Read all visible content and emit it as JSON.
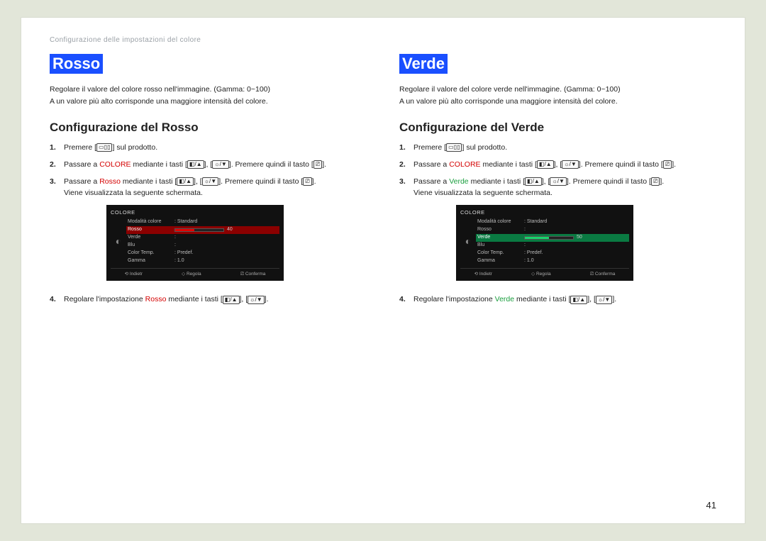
{
  "header": "Configurazione delle impostazioni del colore",
  "page_number": "41",
  "colors": {
    "highlight_bg": "#1a4fff",
    "highlight_fg": "#ffffff",
    "colore_word": "#d40000",
    "rosso_word": "#d40000",
    "verde_word": "#1a9e3e",
    "osd_bg": "#111111",
    "osd_red": "#e30000",
    "osd_green": "#17d66b"
  },
  "icons": {
    "menu": "▭▯▯",
    "up": "◧/▲",
    "down": "☼/▼",
    "enter": "⎚"
  },
  "left": {
    "title": "Rosso",
    "intro_l1": "Regolare il valore del colore rosso nell'immagine. (Gamma: 0~100)",
    "intro_l2": "A un valore più alto corrisponde una maggiore intensità del colore.",
    "subhead": "Configurazione del Rosso",
    "steps": {
      "s1a": "Premere [",
      "s1b": "] sul prodotto.",
      "s2a": "Passare a ",
      "s2_colore": "COLORE",
      "s2b": " mediante i tasti [",
      "s2c": "], [",
      "s2d": "]. Premere quindi il tasto [",
      "s2e": "].",
      "s3a": "Passare a ",
      "s3_rosso": "Rosso",
      "s3b": " mediante i tasti [",
      "s3c": "], [",
      "s3d": "]. Premere quindi il tasto [",
      "s3e": "].",
      "s3_after": "Viene visualizzata la seguente schermata.",
      "s4a": "Regolare l'impostazione ",
      "s4_rosso": "Rosso",
      "s4b": " mediante i tasti [",
      "s4c": "], [",
      "s4d": "]."
    },
    "osd": {
      "title": "COLORE",
      "rows": [
        {
          "label": "Modalità colore",
          "value": "Standard"
        },
        {
          "label": "Rosso",
          "slider": true,
          "fill_pct": 40,
          "num": "40",
          "color": "red",
          "selected": true
        },
        {
          "label": "Verde",
          "value": ""
        },
        {
          "label": "Blu",
          "value": ""
        },
        {
          "label": "Color Temp.",
          "value": "Predef."
        },
        {
          "label": "Gamma",
          "value": "1.0"
        }
      ],
      "foot": [
        "⟲ Indietr",
        "◇ Regola",
        "⎚ Conferma"
      ]
    }
  },
  "right": {
    "title": "Verde",
    "intro_l1": "Regolare il valore del colore verde nell'immagine. (Gamma: 0~100)",
    "intro_l2": "A un valore più alto corrisponde una maggiore intensità del colore.",
    "subhead": "Configurazione del Verde",
    "steps": {
      "s1a": "Premere [",
      "s1b": "] sul prodotto.",
      "s2a": "Passare a ",
      "s2_colore": "COLORE",
      "s2b": " mediante i tasti [",
      "s2c": "], [",
      "s2d": "]. Premere quindi il tasto [",
      "s2e": "].",
      "s3a": "Passare a ",
      "s3_verde": "Verde",
      "s3b": " mediante i tasti [",
      "s3c": "], [",
      "s3d": "]. Premere quindi il tasto [",
      "s3e": "].",
      "s3_after": "Viene visualizzata la seguente schermata.",
      "s4a": "Regolare l'impostazione ",
      "s4_verde": "Verde",
      "s4b": " mediante i tasti [",
      "s4c": "], [",
      "s4d": "]."
    },
    "osd": {
      "title": "COLORE",
      "rows": [
        {
          "label": "Modalità colore",
          "value": "Standard"
        },
        {
          "label": "Rosso",
          "value": ""
        },
        {
          "label": "Verde",
          "slider": true,
          "fill_pct": 50,
          "num": "50",
          "color": "green",
          "selected": true
        },
        {
          "label": "Blu",
          "value": ""
        },
        {
          "label": "Color Temp.",
          "value": "Predef."
        },
        {
          "label": "Gamma",
          "value": "1.0"
        }
      ],
      "foot": [
        "⟲ Indietr",
        "◇ Regola",
        "⎚ Conferma"
      ]
    }
  }
}
